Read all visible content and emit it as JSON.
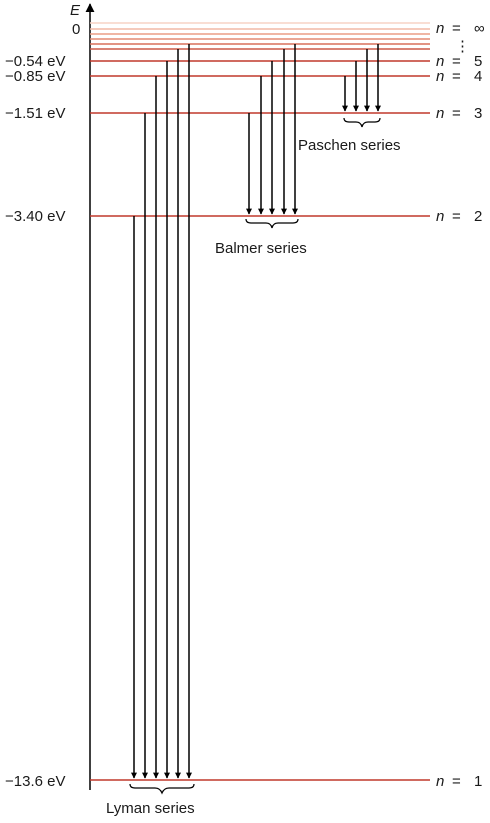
{
  "axis": {
    "label": "E",
    "zero_label": "0"
  },
  "colors": {
    "level_line": "#c0392b",
    "arrow": "#000000",
    "text": "#1a1a1a",
    "faint_levels": [
      "#f7d3c6",
      "#f2b8a6",
      "#ec9d86",
      "#e38a73",
      "#d9705c"
    ]
  },
  "levels": [
    {
      "n": 1,
      "energy_label": "−13.6 eV",
      "n_symbol": "n",
      "eq": "=",
      "n_value": "1"
    },
    {
      "n": 2,
      "energy_label": "−3.40 eV",
      "n_symbol": "n",
      "eq": "=",
      "n_value": "2"
    },
    {
      "n": 3,
      "energy_label": "−1.51 eV",
      "n_symbol": "n",
      "eq": "=",
      "n_value": "3"
    },
    {
      "n": 4,
      "energy_label": "−0.85 eV",
      "n_symbol": "n",
      "eq": "=",
      "n_value": "4"
    },
    {
      "n": 5,
      "energy_label": "−0.54 eV",
      "n_symbol": "n",
      "eq": "=",
      "n_value": "5"
    }
  ],
  "infinity_label": {
    "n_symbol": "n",
    "eq": "=",
    "n_value": "∞"
  },
  "ellipsis": "⋮",
  "series": [
    {
      "name": "Lyman series",
      "final_n": 1,
      "initial_n": [
        2,
        3,
        4,
        5,
        6,
        7
      ]
    },
    {
      "name": "Balmer series",
      "final_n": 2,
      "initial_n": [
        3,
        4,
        5,
        6,
        7
      ]
    },
    {
      "name": "Paschen series",
      "final_n": 3,
      "initial_n": [
        4,
        5,
        6,
        7
      ]
    }
  ]
}
